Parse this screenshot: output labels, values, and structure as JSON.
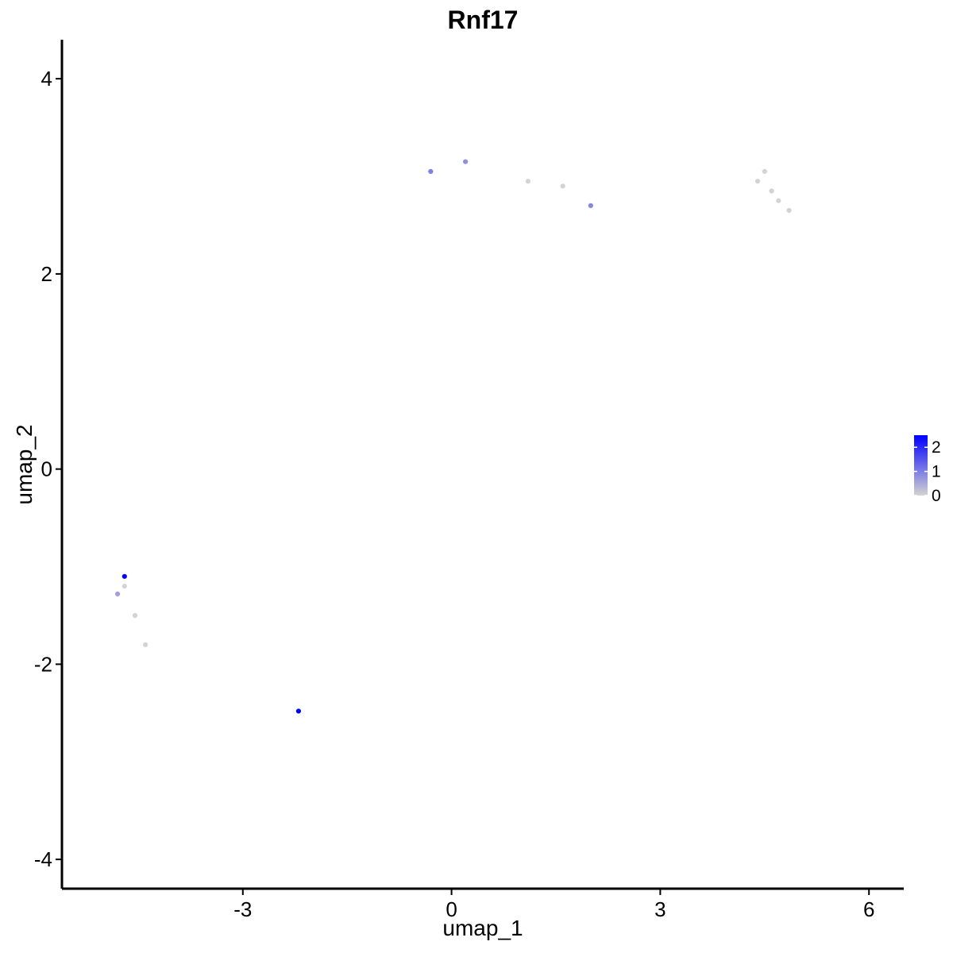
{
  "chart_data": {
    "type": "scatter",
    "title": "Rnf17",
    "xlabel": "umap_1",
    "ylabel": "umap_2",
    "xlim": [
      -5.6,
      6.5
    ],
    "ylim": [
      -4.3,
      4.4
    ],
    "x_ticks": [
      -3,
      0,
      3,
      6
    ],
    "y_ticks": [
      -4,
      -2,
      0,
      2,
      4
    ],
    "x_tick_labels": [
      "-3",
      "0",
      "3",
      "6"
    ],
    "y_tick_labels": [
      "-4",
      "-2",
      "0",
      "2",
      "4"
    ],
    "grid": false,
    "color_scale": {
      "low": "#d3d3d3",
      "high": "#0000ff",
      "min": 0,
      "max": 2.5
    },
    "legend": {
      "position": "right",
      "labels": [
        "2",
        "1",
        "0"
      ],
      "values": [
        2,
        1,
        0
      ]
    },
    "points": [
      [
        -4.7,
        -1.1,
        2.5
      ],
      [
        -2.2,
        -2.48,
        2.5
      ],
      [
        -4.8,
        -1.28,
        0.6
      ],
      [
        -4.7,
        -1.2,
        0.0
      ],
      [
        -4.55,
        -1.5,
        0.0
      ],
      [
        -4.4,
        -1.8,
        0.0
      ],
      [
        4.5,
        3.05,
        0.0
      ],
      [
        4.4,
        2.95,
        0.0
      ],
      [
        4.6,
        2.85,
        0.0
      ],
      [
        4.7,
        2.75,
        0.0
      ],
      [
        4.85,
        2.65,
        0.0
      ],
      [
        0.2,
        3.15,
        0.8
      ],
      [
        -0.3,
        3.05,
        1.0
      ],
      [
        1.1,
        2.95,
        0.0
      ],
      [
        1.6,
        2.9,
        0.0
      ],
      [
        2.0,
        2.7,
        0.9
      ]
    ]
  }
}
